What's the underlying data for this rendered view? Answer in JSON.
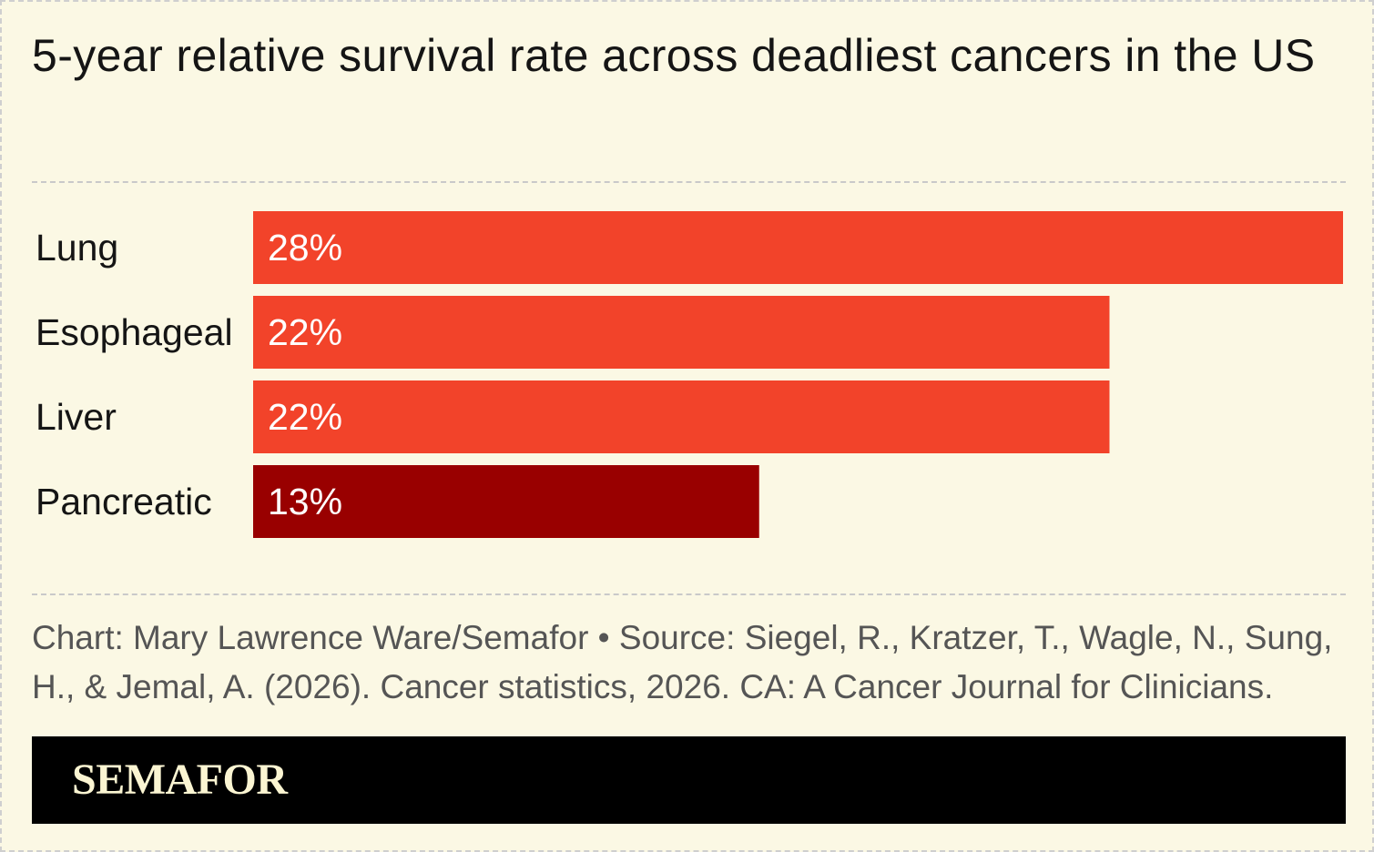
{
  "title": "5-year relative survival rate across deadliest cancers in the US",
  "footer": {
    "note": "Chart: Mary Lawrence Ware/Semafor • Source: Siegel, R., Kratzer, T., Wagle, N., Sung, H., & Jemal, A. (2026). Cancer statistics, 2026. CA: A Cancer Journal for Clinicians.",
    "brand": "SEMAFOR"
  },
  "chart_data": {
    "type": "bar",
    "orientation": "horizontal",
    "title": "5-year relative survival rate across deadliest cancers in the US",
    "xlabel": "",
    "ylabel": "",
    "categories": [
      "Lung",
      "Esophageal",
      "Liver",
      "Pancreatic"
    ],
    "values": [
      28,
      22,
      22,
      13
    ],
    "value_labels": [
      "28%",
      "22%",
      "22%",
      "13%"
    ],
    "colors": [
      "#f2432a",
      "#f2432a",
      "#f2432a",
      "#990000"
    ],
    "xlim": [
      0,
      28
    ],
    "grid": false,
    "legend": "none"
  }
}
